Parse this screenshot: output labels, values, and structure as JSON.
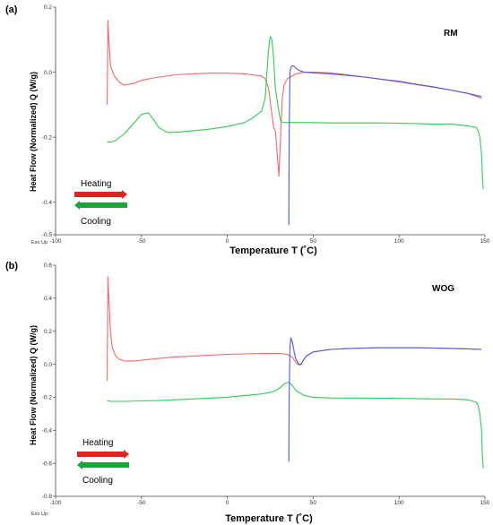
{
  "colors": {
    "heating": "#ef6a6a",
    "cooling": "#2fcf4f",
    "heating_second": "#4a5ae8",
    "arrow_heating": "#e0241d",
    "arrow_cooling": "#1aa53a"
  },
  "chart_data": [
    {
      "type": "line",
      "panel_label": "(a)",
      "sample_label": "RM",
      "xlabel": "Temperature T (˚C)",
      "ylabel": "Heat Flow (Normalized) Q (W/g)",
      "exo_label": "Exo Up",
      "xlim": [
        -100,
        150
      ],
      "ylim": [
        -0.5,
        0.2
      ],
      "xticks": [
        -100,
        -50,
        0,
        50,
        100,
        150
      ],
      "xtick_labels": [
        "-100",
        "-50",
        "0",
        "50",
        "100",
        "150"
      ],
      "yticks": [
        0.2,
        0.0,
        -0.2,
        -0.4,
        -0.5
      ],
      "ytick_labels": [
        "0.2",
        "0.0",
        "-0.2",
        "-0.4",
        "-0.5"
      ],
      "legend": {
        "heating_label": "Heating",
        "cooling_label": "Cooling",
        "placement": "bottom-left"
      },
      "series": [
        {
          "name": "Heating",
          "color": "heating",
          "x": [
            -70,
            -69.5,
            -69,
            -68,
            -66,
            -63,
            -60,
            -55,
            -50,
            -40,
            -30,
            -20,
            -10,
            0,
            10,
            15,
            20,
            22,
            24,
            26,
            27,
            28,
            29,
            30,
            31,
            32,
            33,
            35,
            40,
            45,
            50,
            60,
            70,
            80,
            90,
            100,
            110,
            120,
            130,
            140,
            148
          ],
          "y": [
            -0.1,
            0.16,
            0.1,
            0.02,
            -0.01,
            -0.03,
            -0.04,
            -0.035,
            -0.025,
            -0.015,
            -0.008,
            -0.005,
            -0.003,
            -0.003,
            -0.005,
            -0.008,
            -0.012,
            -0.02,
            -0.05,
            -0.13,
            -0.17,
            -0.18,
            -0.25,
            -0.32,
            -0.2,
            -0.08,
            -0.04,
            -0.02,
            -0.005,
            0.0,
            0.0,
            -0.002,
            -0.008,
            -0.015,
            -0.022,
            -0.03,
            -0.038,
            -0.046,
            -0.055,
            -0.065,
            -0.08
          ]
        },
        {
          "name": "Cooling",
          "color": "cooling",
          "x": [
            149,
            148.5,
            148,
            147,
            146,
            145,
            140,
            130,
            120,
            110,
            100,
            90,
            80,
            70,
            60,
            50,
            40,
            35,
            32,
            31,
            30,
            28,
            27,
            26,
            25,
            24,
            22,
            20,
            15,
            10,
            0,
            -10,
            -20,
            -30,
            -35,
            -40,
            -43,
            -46,
            -50,
            -55,
            -60,
            -65,
            -68,
            -70
          ],
          "y": [
            -0.36,
            -0.32,
            -0.25,
            -0.2,
            -0.18,
            -0.17,
            -0.165,
            -0.16,
            -0.16,
            -0.158,
            -0.157,
            -0.156,
            -0.156,
            -0.156,
            -0.156,
            -0.155,
            -0.155,
            -0.155,
            -0.154,
            -0.15,
            -0.12,
            -0.05,
            0.04,
            0.1,
            0.11,
            0.07,
            -0.08,
            -0.12,
            -0.14,
            -0.155,
            -0.167,
            -0.175,
            -0.18,
            -0.185,
            -0.185,
            -0.17,
            -0.145,
            -0.125,
            -0.13,
            -0.16,
            -0.19,
            -0.21,
            -0.215,
            -0.215
          ]
        },
        {
          "name": "Heating (second)",
          "color": "heating_second",
          "x": [
            35.8,
            36,
            36.5,
            37,
            38,
            39,
            40,
            42,
            45,
            50,
            60,
            70,
            80,
            90,
            100,
            110,
            120,
            130,
            140,
            148
          ],
          "y": [
            -0.47,
            -0.2,
            0.0,
            0.015,
            0.02,
            0.018,
            0.012,
            0.005,
            0.0,
            -0.002,
            -0.005,
            -0.01,
            -0.015,
            -0.022,
            -0.028,
            -0.037,
            -0.045,
            -0.055,
            -0.065,
            -0.075
          ]
        }
      ]
    },
    {
      "type": "line",
      "panel_label": "(b)",
      "sample_label": "WOG",
      "xlabel": "Temperature T (˚C)",
      "ylabel": "Heat Flow (Normalized) Q (W/g)",
      "exo_label": "Exo Up",
      "xlim": [
        -100,
        150
      ],
      "ylim": [
        -0.8,
        0.6
      ],
      "xticks": [
        -100,
        -50,
        0,
        50,
        100,
        150
      ],
      "xtick_labels": [
        "-100",
        "-50",
        "0",
        "50",
        "100",
        "150"
      ],
      "yticks": [
        0.6,
        0.4,
        0.2,
        0.0,
        -0.2,
        -0.4,
        -0.6,
        -0.8
      ],
      "ytick_labels": [
        "0.6",
        "0.4",
        "0.2",
        "0.0",
        "-0.2",
        "-0.4",
        "-0.6",
        "-0.8"
      ],
      "legend": {
        "heating_label": "Heating",
        "cooling_label": "Cooling",
        "placement": "bottom-left"
      },
      "series": [
        {
          "name": "Heating",
          "color": "heating",
          "x": [
            -70,
            -69.5,
            -69,
            -68,
            -67,
            -65,
            -63,
            -60,
            -55,
            -50,
            -40,
            -30,
            -20,
            -10,
            0,
            10,
            20,
            30,
            35,
            38,
            40,
            41,
            42,
            43,
            44,
            46,
            50,
            60,
            70,
            80,
            90,
            100,
            110,
            120,
            130,
            140,
            148
          ],
          "y": [
            -0.1,
            0.53,
            0.4,
            0.2,
            0.1,
            0.05,
            0.03,
            0.02,
            0.02,
            0.025,
            0.035,
            0.045,
            0.05,
            0.055,
            0.06,
            0.063,
            0.065,
            0.065,
            0.06,
            0.04,
            0.01,
            0.0,
            -0.005,
            0.0,
            0.02,
            0.05,
            0.075,
            0.09,
            0.095,
            0.098,
            0.1,
            0.1,
            0.1,
            0.098,
            0.096,
            0.093,
            0.09
          ]
        },
        {
          "name": "Cooling",
          "color": "cooling",
          "x": [
            149,
            148.5,
            148,
            147,
            146,
            145,
            140,
            130,
            120,
            110,
            100,
            90,
            80,
            70,
            60,
            50,
            45,
            40,
            38,
            36,
            35,
            33,
            31,
            28,
            25,
            20,
            10,
            0,
            -10,
            -20,
            -30,
            -40,
            -50,
            -60,
            -65,
            -68,
            -70
          ],
          "y": [
            -0.63,
            -0.55,
            -0.4,
            -0.3,
            -0.25,
            -0.23,
            -0.215,
            -0.21,
            -0.21,
            -0.208,
            -0.207,
            -0.206,
            -0.205,
            -0.205,
            -0.204,
            -0.2,
            -0.19,
            -0.16,
            -0.13,
            -0.11,
            -0.11,
            -0.12,
            -0.14,
            -0.16,
            -0.17,
            -0.18,
            -0.19,
            -0.2,
            -0.205,
            -0.21,
            -0.215,
            -0.22,
            -0.222,
            -0.225,
            -0.225,
            -0.225,
            -0.22
          ]
        },
        {
          "name": "Heating (second)",
          "color": "heating_second",
          "x": [
            35.8,
            36,
            36.5,
            37,
            38,
            39,
            40,
            41,
            42,
            43,
            44,
            46,
            50,
            60,
            70,
            80,
            90,
            100,
            110,
            120,
            130,
            140,
            148
          ],
          "y": [
            -0.59,
            -0.2,
            0.1,
            0.16,
            0.13,
            0.07,
            0.03,
            0.01,
            0.0,
            0.0,
            0.02,
            0.05,
            0.075,
            0.09,
            0.095,
            0.098,
            0.1,
            0.1,
            0.1,
            0.098,
            0.096,
            0.093,
            0.09
          ]
        }
      ]
    }
  ]
}
